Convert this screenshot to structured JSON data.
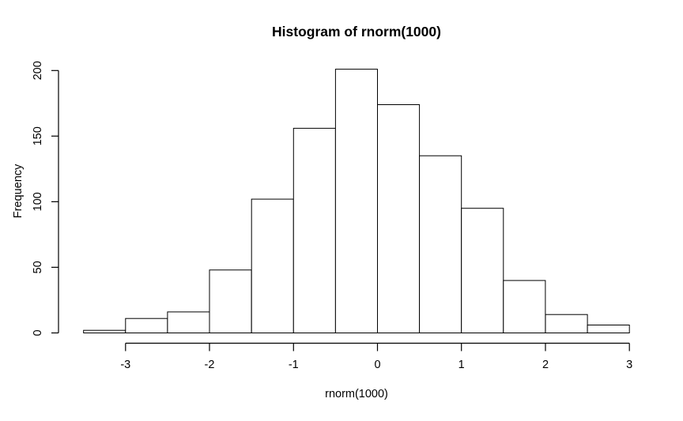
{
  "window": {
    "background_color": "#ffffff"
  },
  "chart_data": {
    "type": "bar",
    "chart_kind": "histogram",
    "title": "Histogram of rnorm(1000)",
    "xlabel": "rnorm(1000)",
    "ylabel": "Frequency",
    "breaks": [
      -3.5,
      -3,
      -2.5,
      -2,
      -1.5,
      -1,
      -0.5,
      0,
      0.5,
      1,
      1.5,
      2,
      2.5,
      3
    ],
    "counts": [
      2,
      11,
      16,
      48,
      102,
      156,
      201,
      174,
      135,
      95,
      40,
      14,
      6
    ],
    "x_ticks": [
      -3,
      -2,
      -1,
      0,
      1,
      2,
      3
    ],
    "x_tick_labels": [
      "-3",
      "-2",
      "-1",
      "0",
      "1",
      "2",
      "3"
    ],
    "y_ticks": [
      0,
      50,
      100,
      150,
      200
    ],
    "y_tick_labels": [
      "0",
      "50",
      "100",
      "150",
      "200"
    ],
    "xlim": [
      -3.5,
      3
    ],
    "ylim": [
      0,
      200
    ],
    "grid": false,
    "legend": false,
    "colors": {
      "bar_fill": "#ffffff",
      "bar_border": "#000000",
      "axis": "#000000",
      "text": "#000000",
      "background": "#ffffff"
    }
  }
}
